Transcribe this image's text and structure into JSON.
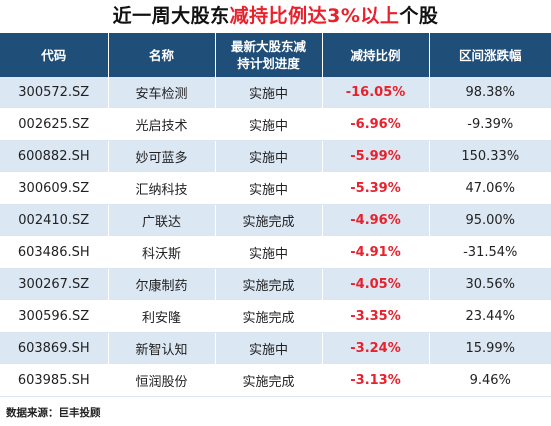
{
  "title": {
    "part1": "近一周大股东",
    "part2": "减持比例达3%以上",
    "part3": "个股"
  },
  "headers": {
    "code": "代码",
    "name": "名称",
    "progress_line1": "最新大股东减",
    "progress_line2": "持计划进度",
    "ratio": "减持比例",
    "change": "区间涨跌幅"
  },
  "rows": [
    {
      "code": "300572.SZ",
      "name": "安车检测",
      "progress": "实施中",
      "ratio": "-16.05%",
      "change": "98.38%"
    },
    {
      "code": "002625.SZ",
      "name": "光启技术",
      "progress": "实施中",
      "ratio": "-6.96%",
      "change": "-9.39%"
    },
    {
      "code": "600882.SH",
      "name": "妙可蓝多",
      "progress": "实施中",
      "ratio": "-5.99%",
      "change": "150.33%"
    },
    {
      "code": "300609.SZ",
      "name": "汇纳科技",
      "progress": "实施中",
      "ratio": "-5.39%",
      "change": "47.06%"
    },
    {
      "code": "002410.SZ",
      "name": "广联达",
      "progress": "实施完成",
      "ratio": "-4.96%",
      "change": "95.00%"
    },
    {
      "code": "603486.SH",
      "name": "科沃斯",
      "progress": "实施中",
      "ratio": "-4.91%",
      "change": "-31.54%"
    },
    {
      "code": "300267.SZ",
      "name": "尔康制药",
      "progress": "实施完成",
      "ratio": "-4.05%",
      "change": "30.56%"
    },
    {
      "code": "300596.SZ",
      "name": "利安隆",
      "progress": "实施完成",
      "ratio": "-3.35%",
      "change": "23.44%"
    },
    {
      "code": "603869.SH",
      "name": "新智认知",
      "progress": "实施中",
      "ratio": "-3.24%",
      "change": "15.99%"
    },
    {
      "code": "603985.SH",
      "name": "恒润股份",
      "progress": "实施完成",
      "ratio": "-3.13%",
      "change": "9.46%"
    }
  ],
  "footer": "数据来源：巨丰投顾",
  "colors": {
    "header_bg": "#1f4e79",
    "stripe": "#dbe7f3",
    "accent_red": "#e8212c"
  }
}
